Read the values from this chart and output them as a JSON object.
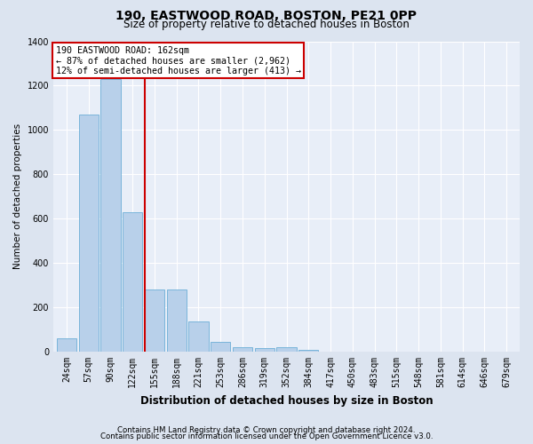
{
  "title1": "190, EASTWOOD ROAD, BOSTON, PE21 0PP",
  "title2": "Size of property relative to detached houses in Boston",
  "xlabel": "Distribution of detached houses by size in Boston",
  "ylabel": "Number of detached properties",
  "footer1": "Contains HM Land Registry data © Crown copyright and database right 2024.",
  "footer2": "Contains public sector information licensed under the Open Government Licence v3.0.",
  "bar_labels": [
    "24sqm",
    "57sqm",
    "90sqm",
    "122sqm",
    "155sqm",
    "188sqm",
    "221sqm",
    "253sqm",
    "286sqm",
    "319sqm",
    "352sqm",
    "384sqm",
    "417sqm",
    "450sqm",
    "483sqm",
    "515sqm",
    "548sqm",
    "581sqm",
    "614sqm",
    "646sqm",
    "679sqm"
  ],
  "bar_values": [
    60,
    1070,
    1230,
    630,
    280,
    280,
    135,
    45,
    20,
    15,
    20,
    10,
    0,
    0,
    0,
    0,
    0,
    0,
    0,
    0,
    0
  ],
  "bar_color": "#b8d0ea",
  "bar_edgecolor": "#6baed6",
  "property_line_x": 3.55,
  "property_line_color": "#cc0000",
  "annotation_line1": "190 EASTWOOD ROAD: 162sqm",
  "annotation_line2": "← 87% of detached houses are smaller (2,962)",
  "annotation_line3": "12% of semi-detached houses are larger (413) →",
  "annotation_box_facecolor": "white",
  "annotation_box_edgecolor": "#cc0000",
  "ylim": [
    0,
    1400
  ],
  "yticks": [
    0,
    200,
    400,
    600,
    800,
    1000,
    1200,
    1400
  ],
  "fig_bg_color": "#dce4f0",
  "plot_bg_color": "#e8eef8",
  "grid_color": "white",
  "title1_fontsize": 10,
  "title2_fontsize": 8.5,
  "xlabel_fontsize": 8.5,
  "ylabel_fontsize": 7.5,
  "tick_fontsize": 7,
  "footer_fontsize": 6.2,
  "annotation_fontsize": 7.2
}
